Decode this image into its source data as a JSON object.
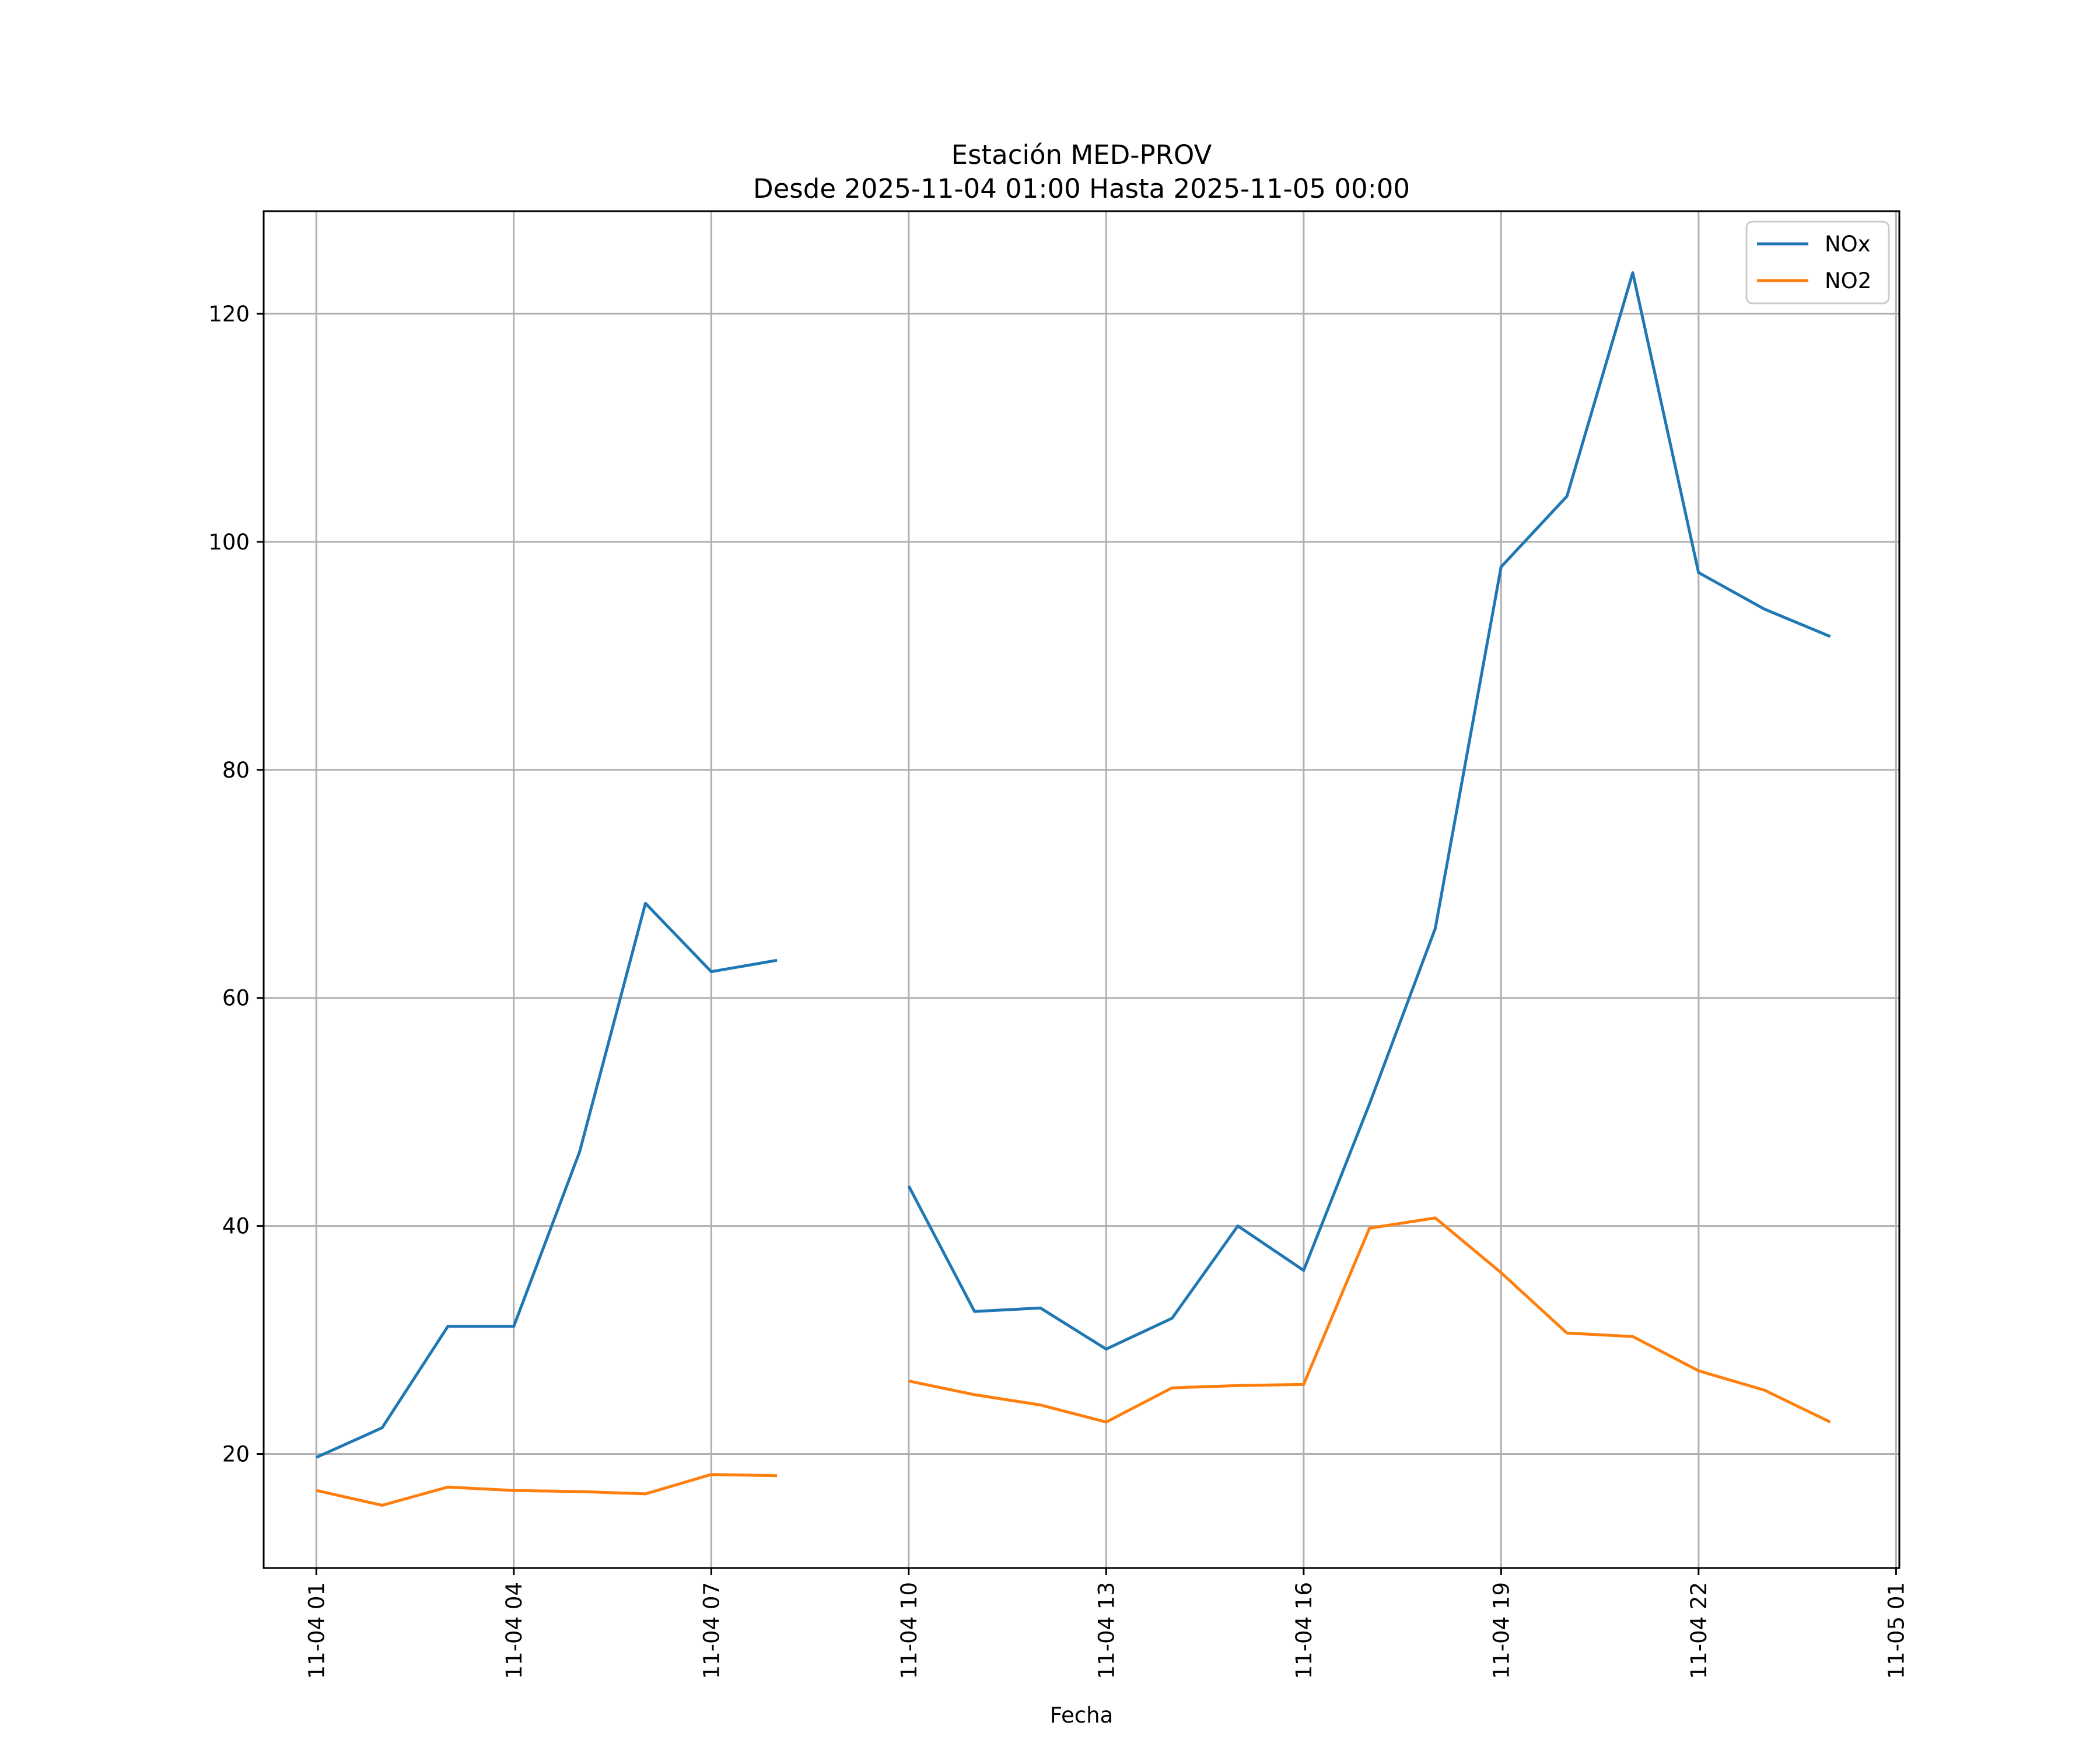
{
  "chart_data": {
    "type": "line",
    "title": "Estación MED-PROV",
    "subtitle": "Desde 2025-11-04 01:00 Hasta 2025-11-05 00:00",
    "xlabel": "Fecha",
    "ylabel": "",
    "x_unit": "hours since 2025-11-04 00:00",
    "xlim": [
      0.2,
      25.05
    ],
    "ylim": [
      10,
      129
    ],
    "grid": true,
    "legend_position": "top-right",
    "x_ticks": [
      {
        "x": 1,
        "label": "11-04 01"
      },
      {
        "x": 4,
        "label": "11-04 04"
      },
      {
        "x": 7,
        "label": "11-04 07"
      },
      {
        "x": 10,
        "label": "11-04 10"
      },
      {
        "x": 13,
        "label": "11-04 13"
      },
      {
        "x": 16,
        "label": "11-04 16"
      },
      {
        "x": 19,
        "label": "11-04 19"
      },
      {
        "x": 22,
        "label": "11-04 22"
      },
      {
        "x": 25,
        "label": "11-05 01"
      }
    ],
    "y_ticks": [
      {
        "y": 20,
        "label": "20"
      },
      {
        "y": 40,
        "label": "40"
      },
      {
        "y": 60,
        "label": "60"
      },
      {
        "y": 80,
        "label": "80"
      },
      {
        "y": 100,
        "label": "100"
      },
      {
        "y": 120,
        "label": "120"
      }
    ],
    "x": [
      1,
      2,
      3,
      4,
      5,
      6,
      7,
      8,
      9,
      10,
      11,
      12,
      13,
      14,
      15,
      16,
      17,
      18,
      19,
      20,
      21,
      22,
      23,
      24
    ],
    "series": [
      {
        "name": "NOx",
        "color": "#1f77b4",
        "values": [
          19.7,
          22.3,
          31.2,
          31.2,
          46.5,
          68.3,
          62.3,
          63.3,
          null,
          43.5,
          32.5,
          32.8,
          29.2,
          31.9,
          40.0,
          36.1,
          50.7,
          66.1,
          97.8,
          104.0,
          123.6,
          97.3,
          94.1,
          91.7
        ]
      },
      {
        "name": "NO2",
        "color": "#ff7f0e",
        "values": [
          16.8,
          15.5,
          17.1,
          16.8,
          16.7,
          16.5,
          18.2,
          18.1,
          null,
          26.4,
          25.2,
          24.3,
          22.8,
          25.8,
          26.0,
          26.1,
          39.8,
          40.7,
          35.9,
          30.6,
          30.3,
          27.3,
          25.6,
          22.8
        ]
      }
    ]
  }
}
